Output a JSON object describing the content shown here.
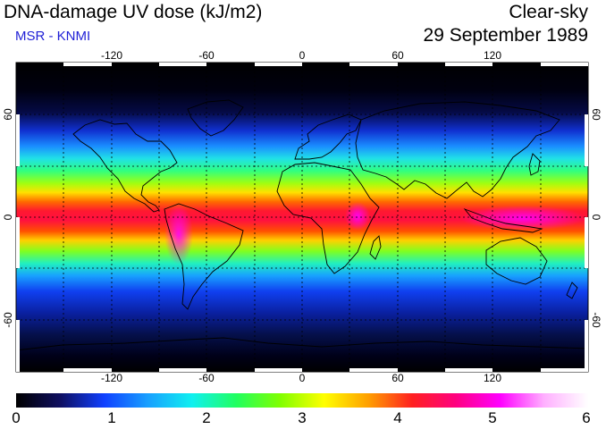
{
  "header": {
    "title": "DNA-damage UV dose (kJ/m2)",
    "subtitle": "MSR - KNMI",
    "sky_condition": "Clear-sky",
    "date": "29 September 1989"
  },
  "map": {
    "projection": "equirectangular",
    "lon_range": [
      -180,
      180
    ],
    "lat_range": [
      -90,
      90
    ],
    "grid_spacing_deg": 30,
    "gridlines": "dotted",
    "coastlines": true,
    "lon_tick_labels": [
      "-120",
      "-60",
      "0",
      "60",
      "120"
    ],
    "lat_tick_labels": [
      "60",
      "0",
      "-60"
    ]
  },
  "colorbar": {
    "min": 0,
    "max": 6,
    "tick_labels": [
      "0",
      "1",
      "2",
      "3",
      "4",
      "5",
      "6"
    ],
    "colors": [
      "#000000",
      "#0f0f60",
      "#1040ff",
      "#18a0ff",
      "#10f0f0",
      "#20ff60",
      "#80ff00",
      "#ffff00",
      "#ffa000",
      "#ff2020",
      "#ff0080",
      "#ff00ff",
      "#ffb0ff",
      "#ffffff"
    ]
  }
}
